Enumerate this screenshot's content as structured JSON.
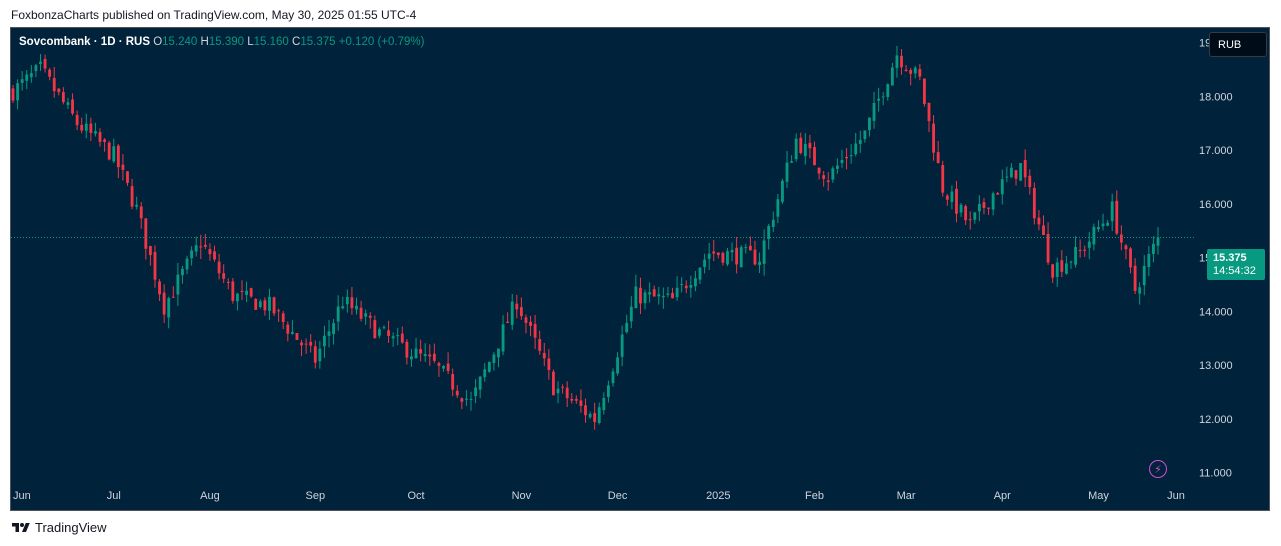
{
  "header": {
    "published_line": "FoxbonzaCharts published on TradingView.com, May 30, 2025 01:55 UTC-4"
  },
  "legend": {
    "symbol_line": "Sovcombank · 1D · RUS",
    "o_label": "O",
    "o_value": "15.240",
    "h_label": "H",
    "h_value": "15.390",
    "l_label": "L",
    "l_value": "15.160",
    "c_label": "C",
    "c_value": "15.375",
    "change": "+0.120 (+0.79%)"
  },
  "currency_button": "RUB",
  "price_tag": {
    "price": "15.375",
    "countdown": "14:54:32"
  },
  "footer": {
    "brand": "TradingView"
  },
  "colors": {
    "background": "#00223a",
    "up": "#089981",
    "down": "#f23645",
    "axis_text": "#d1d4dc",
    "grid": "#0d2d45",
    "accent": "#d24dd4"
  },
  "chart_data": {
    "type": "candlestick",
    "symbol": "Sovcombank",
    "interval": "1D",
    "exchange": "RUS",
    "currency": "RUB",
    "ylim": [
      10.9,
      19.2
    ],
    "y_ticks": [
      "11.000",
      "12.000",
      "13.000",
      "14.000",
      "15.000",
      "16.000",
      "17.000",
      "18.000",
      "19.000"
    ],
    "x_ticks": [
      "Jun",
      "Jul",
      "Aug",
      "Sep",
      "Oct",
      "Nov",
      "Dec",
      "2025",
      "Feb",
      "Mar",
      "Apr",
      "May",
      "Jun"
    ],
    "last_price": 15.375,
    "grid": false,
    "path_anchors": [
      {
        "i": 0,
        "p": 18.1
      },
      {
        "i": 6,
        "p": 18.5
      },
      {
        "i": 14,
        "p": 17.5
      },
      {
        "i": 22,
        "p": 16.9
      },
      {
        "i": 27,
        "p": 15.9
      },
      {
        "i": 33,
        "p": 14.1
      },
      {
        "i": 41,
        "p": 15.3
      },
      {
        "i": 48,
        "p": 14.3
      },
      {
        "i": 56,
        "p": 14.1
      },
      {
        "i": 66,
        "p": 13.1
      },
      {
        "i": 72,
        "p": 14.2
      },
      {
        "i": 80,
        "p": 13.6
      },
      {
        "i": 92,
        "p": 13.0
      },
      {
        "i": 100,
        "p": 12.3
      },
      {
        "i": 110,
        "p": 14.2
      },
      {
        "i": 118,
        "p": 12.6
      },
      {
        "i": 127,
        "p": 12.0
      },
      {
        "i": 136,
        "p": 14.3
      },
      {
        "i": 144,
        "p": 14.2
      },
      {
        "i": 152,
        "p": 15.1
      },
      {
        "i": 163,
        "p": 15.0
      },
      {
        "i": 171,
        "p": 17.2
      },
      {
        "i": 178,
        "p": 16.5
      },
      {
        "i": 186,
        "p": 17.3
      },
      {
        "i": 193,
        "p": 18.8
      },
      {
        "i": 198,
        "p": 18.3
      },
      {
        "i": 203,
        "p": 16.3
      },
      {
        "i": 209,
        "p": 15.6
      },
      {
        "i": 214,
        "p": 16.2
      },
      {
        "i": 220,
        "p": 16.7
      },
      {
        "i": 227,
        "p": 14.8
      },
      {
        "i": 233,
        "p": 15.1
      },
      {
        "i": 240,
        "p": 15.9
      },
      {
        "i": 245,
        "p": 14.4
      },
      {
        "i": 250,
        "p": 15.375
      }
    ]
  }
}
